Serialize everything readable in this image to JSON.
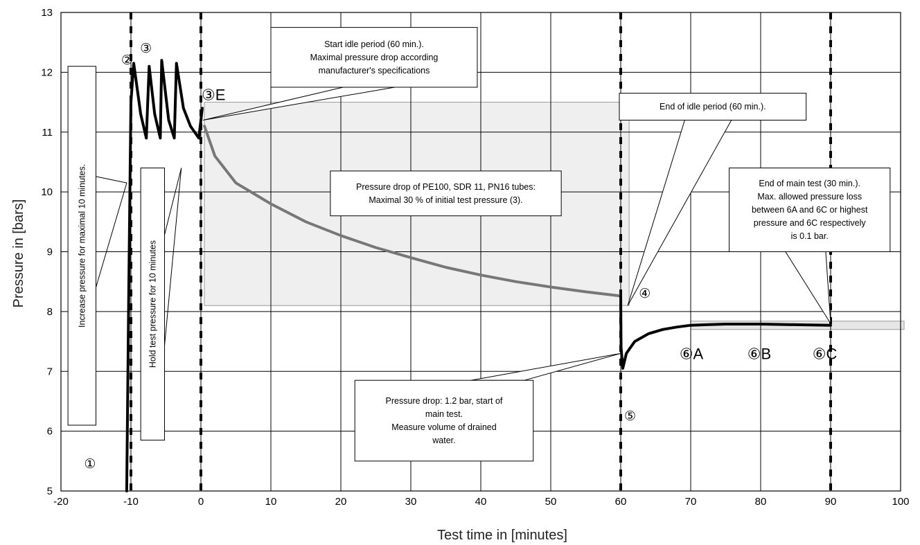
{
  "chart_data": {
    "type": "line",
    "title": "",
    "xlabel": "Test time in [minutes]",
    "ylabel": "Pressure in [bars]",
    "xlim": [
      -20,
      100
    ],
    "ylim": [
      5,
      13
    ],
    "x_ticks": [
      "-20",
      "-10",
      "0",
      "10",
      "20",
      "30",
      "40",
      "50",
      "60",
      "70",
      "80",
      "90",
      "100"
    ],
    "y_ticks": [
      "5",
      "6",
      "7",
      "8",
      "9",
      "10",
      "11",
      "12",
      "13"
    ],
    "grid": true,
    "dashed_vertical_markers_at_x": [
      -10,
      0,
      60,
      90
    ],
    "series": [
      {
        "color": "#000000",
        "points": [
          [
            -10.6,
            5.0
          ],
          [
            -10.3,
            8.5
          ],
          [
            -10.0,
            11.5
          ],
          [
            -9.6,
            12.15
          ],
          [
            -8.6,
            11.3
          ],
          [
            -7.8,
            10.9
          ],
          [
            -7.4,
            12.1
          ],
          [
            -6.6,
            11.3
          ],
          [
            -5.8,
            10.9
          ],
          [
            -5.6,
            12.2
          ],
          [
            -4.6,
            11.2
          ],
          [
            -3.8,
            10.9
          ],
          [
            -3.5,
            12.15
          ],
          [
            -2.5,
            11.4
          ],
          [
            -1.5,
            11.1
          ],
          [
            -0.3,
            10.9
          ],
          [
            0.2,
            11.4
          ]
        ]
      },
      {
        "color": "#777777",
        "points": [
          [
            0.5,
            11.1
          ],
          [
            2,
            10.6
          ],
          [
            5,
            10.15
          ],
          [
            10,
            9.8
          ],
          [
            15,
            9.5
          ],
          [
            20,
            9.27
          ],
          [
            25,
            9.07
          ],
          [
            30,
            8.9
          ],
          [
            35,
            8.74
          ],
          [
            40,
            8.61
          ],
          [
            45,
            8.5
          ],
          [
            50,
            8.41
          ],
          [
            55,
            8.33
          ],
          [
            60,
            8.26
          ]
        ]
      },
      {
        "color": "#000000",
        "points": [
          [
            60.0,
            8.26
          ],
          [
            60.05,
            7.4
          ],
          [
            60.3,
            7.05
          ],
          [
            60.8,
            7.3
          ],
          [
            62,
            7.5
          ],
          [
            64,
            7.63
          ],
          [
            66,
            7.7
          ],
          [
            68,
            7.74
          ],
          [
            70,
            7.77
          ],
          [
            75,
            7.79
          ],
          [
            80,
            7.79
          ],
          [
            85,
            7.78
          ],
          [
            90,
            7.77
          ]
        ]
      }
    ],
    "shaded_regions": [
      {
        "x": [
          0.5,
          61.2
        ],
        "y": [
          8.1,
          11.5
        ],
        "color": "#efefef"
      },
      {
        "x": [
          70,
          100.5
        ],
        "y": [
          7.7,
          7.84
        ],
        "color": "#e6e6e6"
      }
    ],
    "vertical_boxes": [
      {
        "text": "Increase pressure for maximal 10 minutes.",
        "x": [
          -19,
          -15
        ],
        "y": [
          6.1,
          12.1
        ],
        "pointer_tip": [
          -10.6,
          10.15
        ]
      },
      {
        "text": "Hold test pressure for 10 minutes",
        "x": [
          -8.6,
          -5.2
        ],
        "y": [
          5.85,
          10.4
        ],
        "pointer_tip": [
          -2.8,
          10.4
        ]
      }
    ],
    "annotations": [
      {
        "lines": [
          "Start idle period (60 min.).",
          "Maximal pressure drop according",
          "manufacturer's specifications"
        ],
        "box_x": [
          10,
          39.5
        ],
        "box_y": [
          11.75,
          12.75
        ],
        "pointer_tip": [
          0.3,
          11.2
        ]
      },
      {
        "lines": [
          "End of idle period (60 min.)."
        ],
        "box_x": [
          59.8,
          86.5
        ],
        "box_y": [
          11.2,
          11.65
        ],
        "pointer_tip": [
          61,
          8.1
        ]
      },
      {
        "lines": [
          "Pressure drop of PE100, SDR 11, PN16 tubes:",
          "Maximal 30 % of initial test pressure (3)."
        ],
        "box_x": [
          18.5,
          51.5
        ],
        "box_y": [
          9.6,
          10.35
        ]
      },
      {
        "lines": [
          "End of main test (30 min.).",
          "Max. allowed pressure loss",
          "between 6A and 6C or highest",
          "pressure and 6C respectively",
          "is 0.1 bar."
        ],
        "box_x": [
          75.5,
          98.5
        ],
        "box_y": [
          9.0,
          10.4
        ],
        "pointer_tip": [
          90,
          7.8
        ]
      },
      {
        "lines": [
          "Pressure drop: 1.2 bar, start of",
          "main test.",
          "Measure volume of drained",
          "water."
        ],
        "box_x": [
          22,
          47.5
        ],
        "box_y": [
          5.5,
          6.85
        ],
        "pointer_tip": [
          60,
          7.3
        ]
      }
    ],
    "point_labels": [
      {
        "text": "①",
        "x": -16.7,
        "y": 5.45
      },
      {
        "text": "②",
        "x": -11.4,
        "y": 12.2
      },
      {
        "text": "③",
        "x": -8.7,
        "y": 12.4
      },
      {
        "text": "③E",
        "x": 0.1,
        "y": 11.63
      },
      {
        "text": "④",
        "x": 62.6,
        "y": 8.3
      },
      {
        "text": "⑤",
        "x": 60.5,
        "y": 6.25
      },
      {
        "text": "⑥A",
        "x": 68.4,
        "y": 7.3
      },
      {
        "text": "⑥B",
        "x": 78.1,
        "y": 7.3
      },
      {
        "text": "⑥C",
        "x": 87.4,
        "y": 7.3
      }
    ]
  }
}
